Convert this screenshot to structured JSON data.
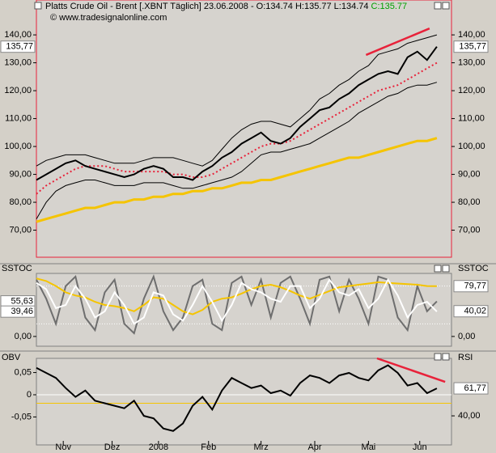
{
  "chart_data": [
    {
      "type": "line",
      "title": "Platts Crude Oil - Brent [.XBNT  Täglich] 23.06.2008 - O:134.74 H:135.77 L:134.74",
      "title_close": "C:135.77",
      "subtitle": "© www.tradesignalonline.com",
      "x": [
        0,
        4,
        8,
        12,
        16,
        20,
        24,
        28,
        32,
        36,
        40,
        44,
        48,
        52,
        56,
        60,
        64,
        68,
        72,
        76,
        80,
        84,
        88,
        92,
        96,
        100,
        104,
        108,
        112,
        116,
        120,
        124,
        128,
        132,
        136,
        140,
        144,
        148,
        152,
        156,
        160,
        164
      ],
      "xlim": [
        0,
        170
      ],
      "xticks": [
        {
          "value": 11,
          "label": "Nov"
        },
        {
          "value": 31,
          "label": "Dez"
        },
        {
          "value": 50,
          "label": "2008"
        },
        {
          "value": 70.5,
          "label": "Feb"
        },
        {
          "value": 92,
          "label": "Mrz"
        },
        {
          "value": 114,
          "label": "Apr"
        },
        {
          "value": 136,
          "label": "Mai"
        },
        {
          "value": 157,
          "label": "Jun"
        }
      ],
      "ylim": [
        60.3,
        152.5
      ],
      "yticks": [
        {
          "value": 140,
          "label": "140,00"
        },
        {
          "value": 130,
          "label": "130,00"
        },
        {
          "value": 120,
          "label": "120,00"
        },
        {
          "value": 110,
          "label": "110,00"
        },
        {
          "value": 100,
          "label": "100,00"
        },
        {
          "value": 90,
          "label": "90,00"
        },
        {
          "value": 80,
          "label": "80,00"
        },
        {
          "value": 70,
          "label": "70,00"
        }
      ],
      "series": [
        {
          "color": "#f5c400",
          "width": 3,
          "values": [
            73,
            74,
            75,
            76,
            77,
            78,
            78,
            79,
            80,
            80,
            81,
            81,
            82,
            82,
            83,
            83,
            84,
            84,
            85,
            85,
            86,
            87,
            87,
            88,
            88,
            89,
            90,
            91,
            92,
            93,
            94,
            95,
            96,
            96,
            97,
            98,
            99,
            100,
            101,
            102,
            102,
            103
          ]
        },
        {
          "color": "#000000",
          "width": 1,
          "values": [
            93,
            95,
            96,
            97,
            97,
            97,
            96,
            95,
            94,
            94,
            94,
            95,
            96,
            96,
            96,
            95,
            94,
            93,
            95,
            99,
            103,
            106,
            108,
            109,
            109,
            108,
            107,
            110,
            113,
            117,
            119,
            122,
            124,
            127,
            129,
            133,
            134,
            135,
            137,
            138,
            139,
            140
          ]
        },
        {
          "color": "#000000",
          "width": 1,
          "values": [
            74,
            80,
            84,
            86,
            87,
            88,
            88,
            87,
            86,
            86,
            86,
            87,
            87,
            87,
            86,
            85,
            85,
            86,
            87,
            88,
            89,
            91,
            94,
            97,
            98,
            98,
            99,
            100,
            101,
            103,
            105,
            107,
            109,
            112,
            114,
            116,
            118,
            119,
            121,
            122,
            122,
            123
          ]
        },
        {
          "color": "#e8223a",
          "width": 2,
          "style": "dotted",
          "values": [
            83,
            86,
            88,
            90,
            92,
            93,
            93,
            93,
            92,
            91,
            91,
            91,
            91,
            91,
            90,
            90,
            89,
            89,
            90,
            92,
            94,
            96,
            98,
            100,
            101,
            101,
            102,
            104,
            106,
            108,
            110,
            112,
            114,
            116,
            118,
            120,
            121,
            122,
            124,
            126,
            128,
            130
          ]
        },
        {
          "color": "#000000",
          "width": 2,
          "values": [
            88,
            90,
            92,
            94,
            95,
            93,
            92,
            91,
            90,
            89,
            90,
            92,
            93,
            92,
            89,
            89,
            88,
            91,
            93,
            96,
            98,
            101,
            103,
            105,
            102,
            101,
            103,
            107,
            110,
            113,
            114,
            117,
            119,
            122,
            124,
            126,
            127,
            126,
            132,
            134,
            131,
            135.77
          ]
        }
      ],
      "trendline": {
        "x": [
          135,
          161
        ],
        "values": [
          132.8,
          142.3
        ],
        "color": "#e8223a"
      },
      "markers": [
        {
          "value": 135.77,
          "label": "135,77",
          "side": "left"
        },
        {
          "value": 135.77,
          "label": "135,77",
          "side": "right"
        }
      ]
    },
    {
      "type": "line",
      "label_left": "SSTOC",
      "label_right": "SSTOC",
      "ylim": [
        -15.5,
        100
      ],
      "yticks": [
        {
          "value": 0,
          "label": "0,00"
        }
      ],
      "levels": [
        20,
        80
      ],
      "series": [
        {
          "color": "#6e6e6e",
          "width": 2,
          "values": [
            90,
            60,
            20,
            80,
            95,
            30,
            10,
            70,
            90,
            20,
            5,
            60,
            95,
            40,
            10,
            30,
            80,
            90,
            20,
            10,
            85,
            95,
            50,
            90,
            30,
            85,
            95,
            60,
            20,
            90,
            95,
            40,
            90,
            60,
            20,
            95,
            90,
            30,
            10,
            80,
            40,
            55.63
          ]
        },
        {
          "color": "#f5c400",
          "width": 2,
          "values": [
            92,
            88,
            80,
            70,
            65,
            62,
            55,
            50,
            48,
            45,
            40,
            50,
            62,
            60,
            50,
            40,
            35,
            42,
            55,
            60,
            62,
            68,
            75,
            80,
            82,
            78,
            72,
            65,
            60,
            66,
            72,
            78,
            80,
            82,
            84,
            86,
            85,
            84,
            83,
            82,
            80,
            79.77
          ]
        },
        {
          "color": "#ffffff",
          "width": 2,
          "values": [
            85,
            75,
            45,
            50,
            80,
            60,
            30,
            40,
            70,
            50,
            20,
            30,
            70,
            65,
            35,
            25,
            50,
            80,
            55,
            25,
            50,
            85,
            75,
            70,
            60,
            55,
            80,
            80,
            45,
            60,
            90,
            70,
            65,
            75,
            45,
            60,
            90,
            65,
            30,
            50,
            55,
            39.46
          ]
        }
      ],
      "markers": [
        {
          "value": 55.63,
          "label": "55,63",
          "side": "left"
        },
        {
          "value": 39.46,
          "label": "39,46",
          "side": "left"
        },
        {
          "value": 79.77,
          "label": "79,77",
          "side": "right"
        },
        {
          "value": 40.02,
          "label": "40,02",
          "side": "right"
        }
      ]
    },
    {
      "type": "line",
      "label_left": "OBV",
      "label_right": "RSI",
      "ylim": [
        -0.113,
        0.082
      ],
      "yticks": [
        {
          "value": 0.05,
          "label": "0,05"
        },
        0,
        {
          "value": -0.05,
          "label": "-0,05"
        }
      ],
      "y2lim": [
        17,
        85.5
      ],
      "y2ticks": [
        {
          "value": 40,
          "label": "40,00"
        }
      ],
      "levels": [
        50
      ],
      "levels_axis": "y2",
      "series": [
        {
          "color": "#000000",
          "width": 2,
          "axis": "y2",
          "values": [
            78,
            74,
            70,
            62,
            55,
            60,
            52,
            50,
            48,
            46,
            52,
            40,
            38,
            30,
            28,
            34,
            48,
            55,
            45,
            60,
            70,
            66,
            62,
            64,
            58,
            60,
            56,
            66,
            72,
            70,
            66,
            72,
            74,
            70,
            68,
            76,
            80,
            74,
            64,
            66,
            58,
            61.77
          ]
        }
      ],
      "trendline": {
        "x": [
          139.5,
          167.4
        ],
        "values": [
          85.5,
          66.9
        ],
        "color": "#e8223a",
        "axis": "y2"
      },
      "markers": [
        {
          "value": 61.77,
          "label": "61,77",
          "side": "right",
          "axis": "y2"
        }
      ]
    }
  ]
}
